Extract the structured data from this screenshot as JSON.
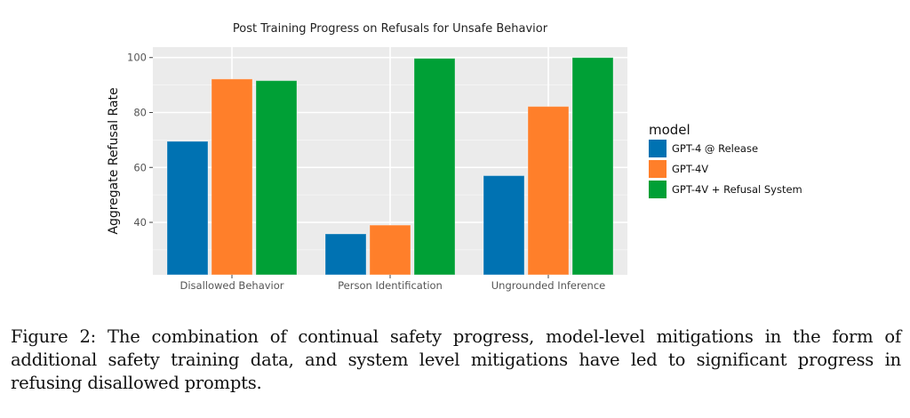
{
  "chart_data": {
    "type": "bar",
    "title": "Post Training Progress on Refusals for Unsafe Behavior",
    "xlabel": "",
    "ylabel": "Aggregate Refusal Rate",
    "ylim": [
      20.9,
      103.8
    ],
    "yticks": [
      40,
      60,
      80,
      100
    ],
    "ytick_labels": [
      "40",
      "60",
      "80",
      "100"
    ],
    "grid": true,
    "categories": [
      "Disallowed Behavior",
      "Person Identification",
      "Ungrounded Inference"
    ],
    "legend": {
      "title": "model",
      "placement": "right"
    },
    "series": [
      {
        "name": "GPT-4 @ Release",
        "color": "#0072B2",
        "values": [
          69.5,
          35.8,
          57.0
        ]
      },
      {
        "name": "GPT-4V",
        "color": "#FF7F2A",
        "values": [
          92.2,
          39.0,
          82.2
        ]
      },
      {
        "name": "GPT-4V + Refusal System",
        "color": "#00A036",
        "values": [
          91.6,
          99.7,
          100.0
        ]
      }
    ]
  },
  "caption": "Figure 2: The combination of continual safety progress, model-level mitigations in the form of additional safety training data, and system level mitigations have led to significant progress in refusing disallowed prompts."
}
